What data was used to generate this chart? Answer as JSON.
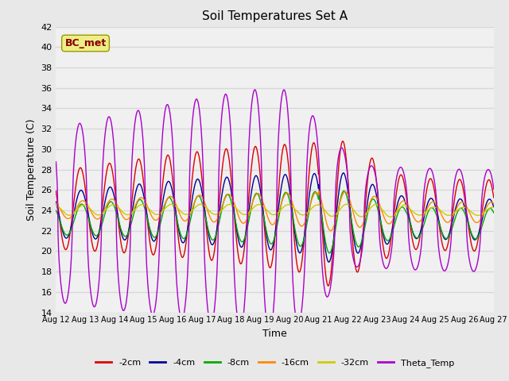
{
  "title": "Soil Temperatures Set A",
  "xlabel": "Time",
  "ylabel": "Soil Temperature (C)",
  "ylim": [
    14,
    42
  ],
  "yticks": [
    14,
    16,
    18,
    20,
    22,
    24,
    26,
    28,
    30,
    32,
    34,
    36,
    38,
    40,
    42
  ],
  "date_labels": [
    "Aug 12",
    "Aug 13",
    "Aug 14",
    "Aug 15",
    "Aug 16",
    "Aug 17",
    "Aug 18",
    "Aug 19",
    "Aug 20",
    "Aug 21",
    "Aug 22",
    "Aug 23",
    "Aug 24",
    "Aug 25",
    "Aug 26",
    "Aug 27"
  ],
  "series_colors": [
    "#dd0000",
    "#000099",
    "#00aa00",
    "#ff8800",
    "#cccc00",
    "#aa00cc"
  ],
  "series_labels": [
    "-2cm",
    "-4cm",
    "-8cm",
    "-16cm",
    "-32cm",
    "Theta_Temp"
  ],
  "annotation_text": "BC_met",
  "annotation_bg": "#eeee88",
  "annotation_color": "#880000",
  "background_color": "#e8e8e8",
  "plot_bg": "#f0f0f0",
  "grid_color": "#d8d8d8",
  "days": 15
}
